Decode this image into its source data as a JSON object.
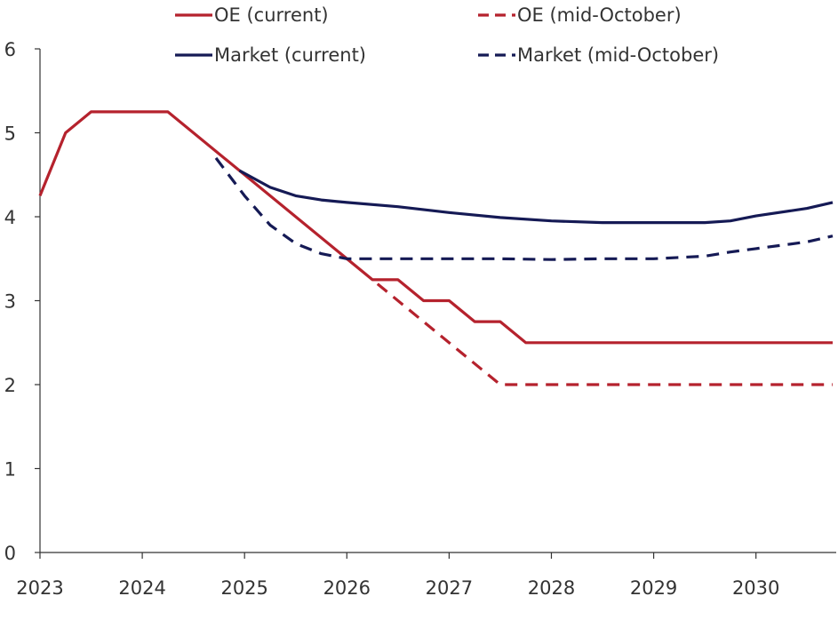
{
  "colors": {
    "oe": "#b5222d",
    "market": "#151a55",
    "axis": "#333333"
  },
  "chart_data": {
    "type": "line",
    "title": "",
    "xlabel": "",
    "ylabel": "",
    "xlim": [
      2023,
      2030.75
    ],
    "ylim": [
      0,
      6
    ],
    "yticks": [
      "0",
      "1",
      "2",
      "3",
      "4",
      "5",
      "6"
    ],
    "xticks": [
      "2023",
      "2024",
      "2025",
      "2026",
      "2027",
      "2028",
      "2029",
      "2030"
    ],
    "grid": false,
    "legend_position": "top",
    "series": [
      {
        "name": "OE (current)",
        "color": "#b5222d",
        "dash": false,
        "points": [
          [
            2023.0,
            4.25
          ],
          [
            2023.25,
            5.0
          ],
          [
            2023.5,
            5.25
          ],
          [
            2024.25,
            5.25
          ],
          [
            2026.25,
            3.25
          ],
          [
            2026.5,
            3.25
          ],
          [
            2026.75,
            3.0
          ],
          [
            2027.0,
            3.0
          ],
          [
            2027.25,
            2.75
          ],
          [
            2027.5,
            2.75
          ],
          [
            2027.75,
            2.5
          ],
          [
            2030.75,
            2.5
          ]
        ]
      },
      {
        "name": "OE (mid-October)",
        "color": "#b5222d",
        "dash": true,
        "points": [
          [
            2026.3,
            3.2
          ],
          [
            2027.5,
            2.0
          ],
          [
            2030.75,
            2.0
          ]
        ]
      },
      {
        "name": "Market (current)",
        "color": "#151a55",
        "dash": false,
        "points": [
          [
            2024.95,
            4.55
          ],
          [
            2025.25,
            4.35
          ],
          [
            2025.5,
            4.25
          ],
          [
            2025.75,
            4.2
          ],
          [
            2026.0,
            4.17
          ],
          [
            2026.5,
            4.12
          ],
          [
            2027.0,
            4.05
          ],
          [
            2027.5,
            3.99
          ],
          [
            2028.0,
            3.95
          ],
          [
            2028.5,
            3.93
          ],
          [
            2029.0,
            3.93
          ],
          [
            2029.5,
            3.93
          ],
          [
            2029.75,
            3.95
          ],
          [
            2030.0,
            4.01
          ],
          [
            2030.5,
            4.1
          ],
          [
            2030.75,
            4.17
          ]
        ]
      },
      {
        "name": "Market (mid-October)",
        "color": "#151a55",
        "dash": true,
        "points": [
          [
            2024.72,
            4.7
          ],
          [
            2025.0,
            4.25
          ],
          [
            2025.25,
            3.9
          ],
          [
            2025.5,
            3.68
          ],
          [
            2025.75,
            3.56
          ],
          [
            2026.0,
            3.5
          ],
          [
            2026.5,
            3.5
          ],
          [
            2027.0,
            3.5
          ],
          [
            2027.5,
            3.5
          ],
          [
            2028.0,
            3.49
          ],
          [
            2028.5,
            3.5
          ],
          [
            2029.0,
            3.5
          ],
          [
            2029.5,
            3.53
          ],
          [
            2029.75,
            3.58
          ],
          [
            2030.0,
            3.62
          ],
          [
            2030.5,
            3.7
          ],
          [
            2030.75,
            3.77
          ]
        ]
      }
    ]
  }
}
